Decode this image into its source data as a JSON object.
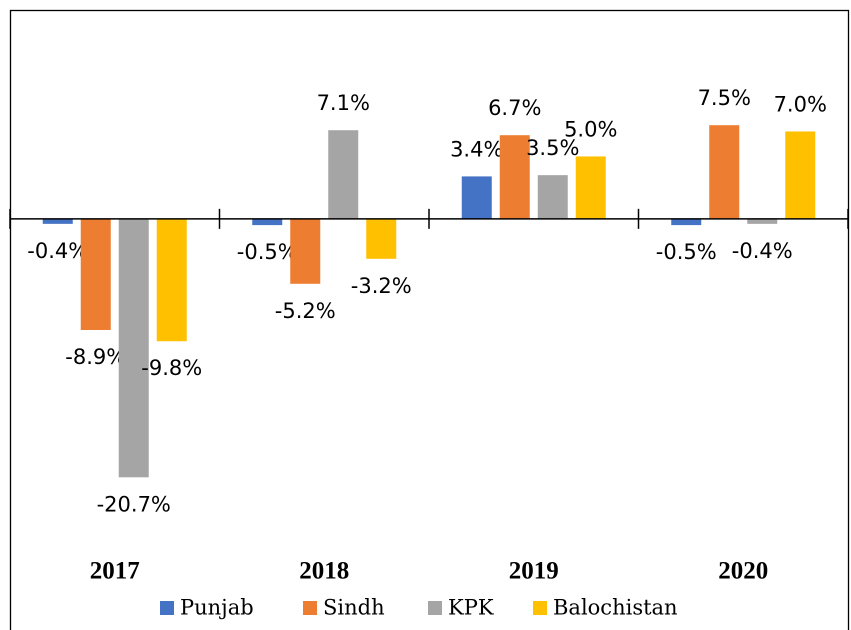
{
  "chart_data": {
    "type": "bar",
    "categories": [
      "2017",
      "2018",
      "2019",
      "2020"
    ],
    "series": [
      {
        "name": "Punjab",
        "color": "#4472c4",
        "values": [
          -0.4,
          -0.5,
          3.4,
          -0.5
        ],
        "value_labels": [
          "-0.4%",
          "-0.5%",
          "3.4%",
          "-0.5%"
        ]
      },
      {
        "name": "Sindh",
        "color": "#ed7d31",
        "values": [
          -8.9,
          -5.2,
          6.7,
          7.5
        ],
        "value_labels": [
          "-8.9%",
          "-5.2%",
          "6.7%",
          "7.5%"
        ]
      },
      {
        "name": "KPK",
        "color": "#a5a5a5",
        "values": [
          -20.7,
          7.1,
          3.5,
          -0.4
        ],
        "value_labels": [
          "-20.7%",
          "7.1%",
          "3.5%",
          "-0.4%"
        ]
      },
      {
        "name": "Balochistan",
        "color": "#ffc000",
        "values": [
          -9.8,
          -3.2,
          5.0,
          7.0
        ],
        "value_labels": [
          "-9.8%",
          "-3.2%",
          "5.0%",
          "7.0%"
        ]
      }
    ],
    "ylim": [
      -25,
      10
    ],
    "legend": "bottom"
  }
}
